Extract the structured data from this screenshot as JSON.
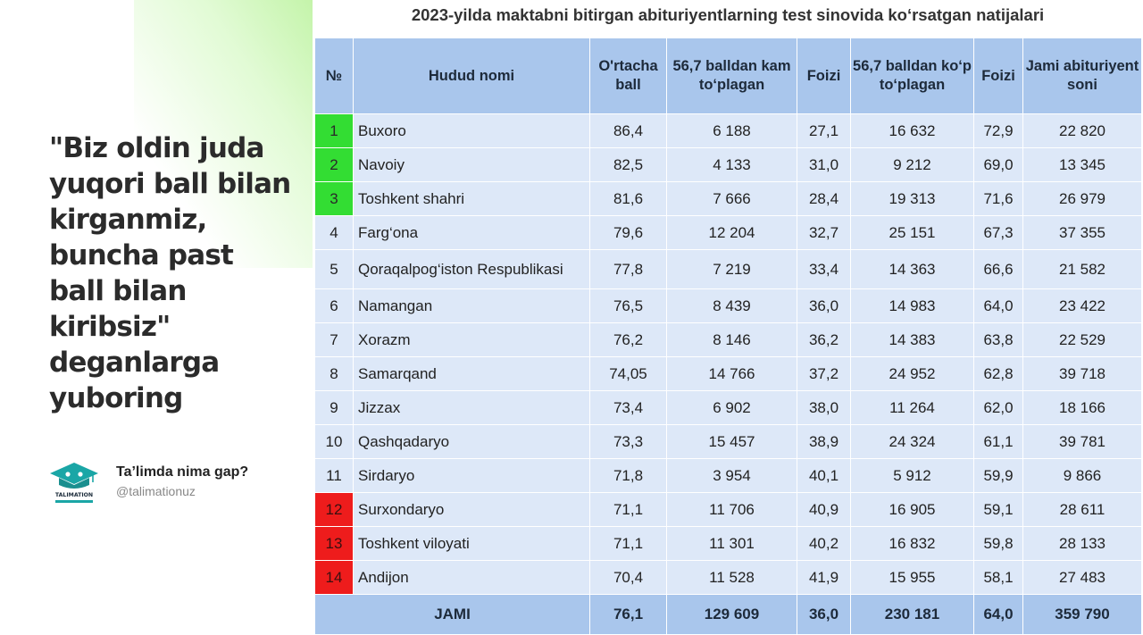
{
  "quote": {
    "lines": [
      "\"Biz oldin juda",
      "yuqori ball bilan",
      "kirganmiz,",
      "buncha past",
      "ball bilan",
      "kiribsiz\"",
      "deganlarga",
      "yuboring"
    ]
  },
  "brand": {
    "logo_text": "TALIMATION",
    "name": "Ta’limda nima gap?",
    "handle": "@talimationuz"
  },
  "table": {
    "title": "2023-yilda maktabni bitirgan abituriyentlarning test sinovida ko‘rsatgan natijalari",
    "headers": [
      "№",
      "Hudud nomi",
      "O'rtacha ball",
      "56,7 balldan kam to‘plagan",
      "Foizi",
      "56,7 balldan ko‘p to‘plagan",
      "Foizi",
      "Jami abituriyent soni"
    ],
    "rows": [
      {
        "no": "1",
        "name": "Buxoro",
        "avg": "86,4",
        "below": "6 188",
        "below_pct": "27,1",
        "above": "16 632",
        "above_pct": "72,9",
        "total": "22 820"
      },
      {
        "no": "2",
        "name": "Navoiy",
        "avg": "82,5",
        "below": "4 133",
        "below_pct": "31,0",
        "above": "9 212",
        "above_pct": "69,0",
        "total": "13 345"
      },
      {
        "no": "3",
        "name": "Toshkent shahri",
        "avg": "81,6",
        "below": "7 666",
        "below_pct": "28,4",
        "above": "19 313",
        "above_pct": "71,6",
        "total": "26 979"
      },
      {
        "no": "4",
        "name": "Farg‘ona",
        "avg": "79,6",
        "below": "12 204",
        "below_pct": "32,7",
        "above": "25 151",
        "above_pct": "67,3",
        "total": "37 355"
      },
      {
        "no": "5",
        "name": "Qoraqalpog‘iston Respublikasi",
        "avg": "77,8",
        "below": "7 219",
        "below_pct": "33,4",
        "above": "14 363",
        "above_pct": "66,6",
        "total": "21 582"
      },
      {
        "no": "6",
        "name": "Namangan",
        "avg": "76,5",
        "below": "8 439",
        "below_pct": "36,0",
        "above": "14 983",
        "above_pct": "64,0",
        "total": "23 422"
      },
      {
        "no": "7",
        "name": "Xorazm",
        "avg": "76,2",
        "below": "8 146",
        "below_pct": "36,2",
        "above": "14 383",
        "above_pct": "63,8",
        "total": "22 529"
      },
      {
        "no": "8",
        "name": "Samarqand",
        "avg": "74,05",
        "below": "14 766",
        "below_pct": "37,2",
        "above": "24 952",
        "above_pct": "62,8",
        "total": "39 718"
      },
      {
        "no": "9",
        "name": "Jizzax",
        "avg": "73,4",
        "below": "6 902",
        "below_pct": "38,0",
        "above": "11 264",
        "above_pct": "62,0",
        "total": "18 166"
      },
      {
        "no": "10",
        "name": "Qashqadaryo",
        "avg": "73,3",
        "below": "15 457",
        "below_pct": "38,9",
        "above": "24 324",
        "above_pct": "61,1",
        "total": "39 781"
      },
      {
        "no": "11",
        "name": "Sirdaryo",
        "avg": "71,8",
        "below": "3 954",
        "below_pct": "40,1",
        "above": "5 912",
        "above_pct": "59,9",
        "total": "9 866"
      },
      {
        "no": "12",
        "name": "Surxondaryo",
        "avg": "71,1",
        "below": "11 706",
        "below_pct": "40,9",
        "above": "16 905",
        "above_pct": "59,1",
        "total": "28 611"
      },
      {
        "no": "13",
        "name": "Toshkent viloyati",
        "avg": "71,1",
        "below": "11 301",
        "below_pct": "40,2",
        "above": "16 832",
        "above_pct": "59,8",
        "total": "28 133"
      },
      {
        "no": "14",
        "name": "Andijon",
        "avg": "70,4",
        "below": "11 528",
        "below_pct": "41,9",
        "above": "15 955",
        "above_pct": "58,1",
        "total": "27 483"
      }
    ],
    "total_row": {
      "label": "JAMI",
      "avg": "76,1",
      "below": "129 609",
      "below_pct": "36,0",
      "above": "230 181",
      "above_pct": "64,0",
      "total": "359 790"
    },
    "colors": {
      "top3": "#33dd33",
      "bottom3": "#ee1c1c",
      "header_bg": "#a9c6ec",
      "cell_bg": "#dde8f8"
    }
  }
}
